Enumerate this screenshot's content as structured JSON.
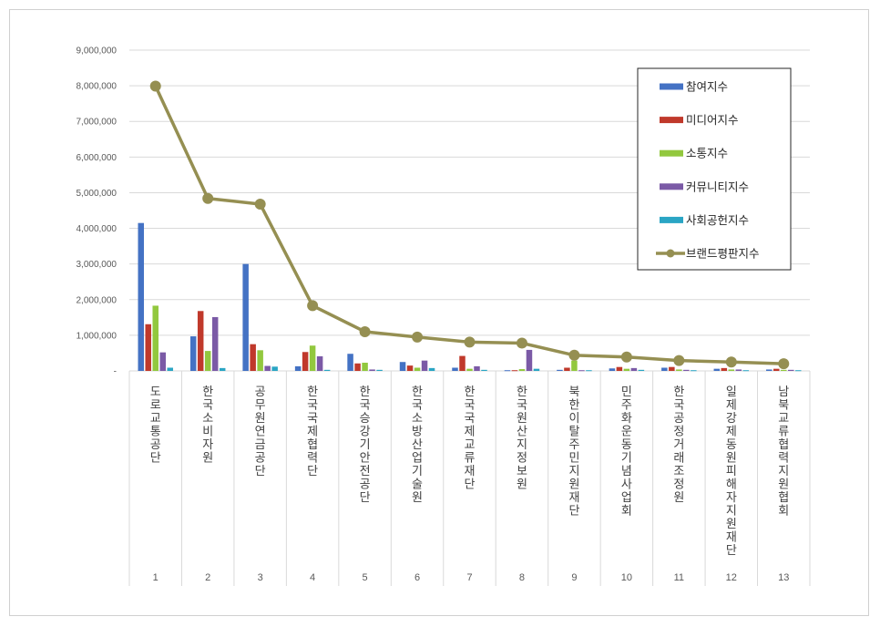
{
  "chart_data": {
    "type": "bar",
    "ylim": [
      0,
      9000000
    ],
    "yticks": [
      "-",
      "1,000,000",
      "2,000,000",
      "3,000,000",
      "4,000,000",
      "5,000,000",
      "6,000,000",
      "7,000,000",
      "8,000,000",
      "9,000,000"
    ],
    "grid": true,
    "legend_position": "top-right",
    "index_labels": [
      "1",
      "2",
      "3",
      "4",
      "5",
      "6",
      "7",
      "8",
      "9",
      "10",
      "11",
      "12",
      "13"
    ],
    "categories": [
      "도로교통공단",
      "한국소비자원",
      "공무원연금공단",
      "한국국제협력단",
      "한국승강기안전공단",
      "한국소방산업기술원",
      "한국국제교류재단",
      "한국원산지정보원",
      "북한이탈주민지원재단",
      "민주화운동기념사업회",
      "한국공정거래조정원",
      "일제강제동원피해자지원재단",
      "남북교류협력지원협회"
    ],
    "series": [
      {
        "name": "참여지수",
        "kind": "bar",
        "color": "#4472c4",
        "values": [
          4150000,
          970000,
          3000000,
          130000,
          480000,
          250000,
          90000,
          20000,
          30000,
          70000,
          90000,
          60000,
          40000
        ]
      },
      {
        "name": "미디어지수",
        "kind": "bar",
        "color": "#c0392b",
        "values": [
          1310000,
          1680000,
          750000,
          530000,
          210000,
          150000,
          420000,
          20000,
          90000,
          110000,
          110000,
          80000,
          60000
        ]
      },
      {
        "name": "소통지수",
        "kind": "bar",
        "color": "#92c83e",
        "values": [
          1830000,
          560000,
          580000,
          710000,
          230000,
          90000,
          60000,
          50000,
          290000,
          60000,
          40000,
          40000,
          30000
        ]
      },
      {
        "name": "커뮤니티지수",
        "kind": "bar",
        "color": "#7b5aa6",
        "values": [
          520000,
          1510000,
          140000,
          410000,
          40000,
          290000,
          130000,
          590000,
          20000,
          80000,
          30000,
          40000,
          30000
        ]
      },
      {
        "name": "사회공헌지수",
        "kind": "bar",
        "color": "#2aa5c4",
        "values": [
          90000,
          80000,
          120000,
          30000,
          30000,
          80000,
          30000,
          60000,
          20000,
          30000,
          20000,
          20000,
          20000
        ]
      },
      {
        "name": "브랜드평판지수",
        "kind": "line",
        "color": "#958f52",
        "values": [
          7990000,
          4840000,
          4680000,
          1830000,
          1100000,
          950000,
          810000,
          780000,
          440000,
          390000,
          290000,
          250000,
          200000
        ]
      }
    ]
  }
}
